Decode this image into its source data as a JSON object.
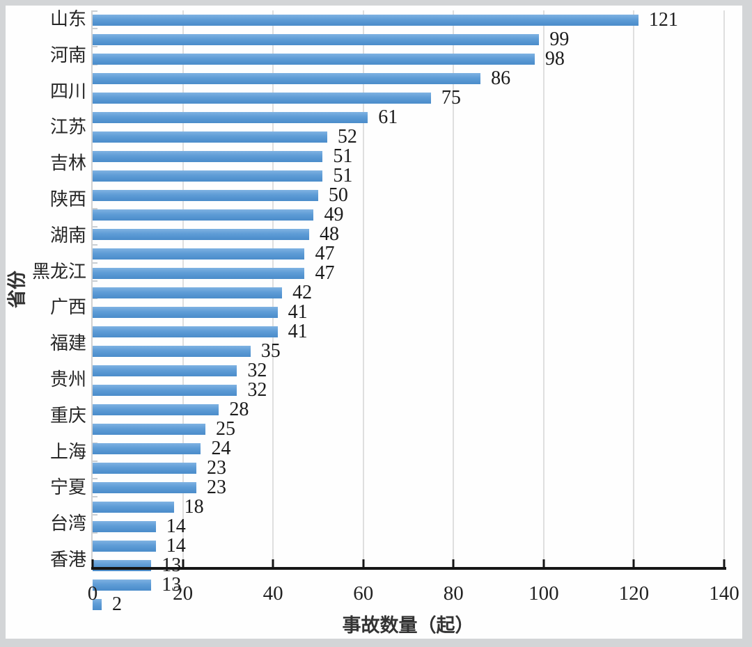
{
  "page": {
    "background_color": "#d3d5d7",
    "panel_color": "#fefefe"
  },
  "chart_data": {
    "type": "bar",
    "orientation": "horizontal",
    "title": "",
    "xlabel": "事故数量（起）",
    "ylabel": "省份",
    "xlim": [
      0,
      140
    ],
    "xticks": [
      0,
      20,
      40,
      60,
      80,
      100,
      120,
      140
    ],
    "grid": "vertical-light",
    "legend": "none",
    "bar_color": "#5b9bd5",
    "bars": [
      {
        "label": "山东",
        "value": 121
      },
      {
        "label": "",
        "value": 99
      },
      {
        "label": "河南",
        "value": 98
      },
      {
        "label": "",
        "value": 86
      },
      {
        "label": "四川",
        "value": 75
      },
      {
        "label": "",
        "value": 61
      },
      {
        "label": "江苏",
        "value": 52
      },
      {
        "label": "",
        "value": 51
      },
      {
        "label": "吉林",
        "value": 51
      },
      {
        "label": "",
        "value": 50
      },
      {
        "label": "陕西",
        "value": 49
      },
      {
        "label": "",
        "value": 48
      },
      {
        "label": "湖南",
        "value": 47
      },
      {
        "label": "",
        "value": 47
      },
      {
        "label": "黑龙江",
        "value": 42
      },
      {
        "label": "",
        "value": 41
      },
      {
        "label": "广西",
        "value": 41
      },
      {
        "label": "",
        "value": 35
      },
      {
        "label": "福建",
        "value": 32
      },
      {
        "label": "",
        "value": 32
      },
      {
        "label": "贵州",
        "value": 28
      },
      {
        "label": "",
        "value": 25
      },
      {
        "label": "重庆",
        "value": 24
      },
      {
        "label": "",
        "value": 23
      },
      {
        "label": "上海",
        "value": 23
      },
      {
        "label": "",
        "value": 18
      },
      {
        "label": "宁夏",
        "value": 14
      },
      {
        "label": "",
        "value": 14
      },
      {
        "label": "台湾",
        "value": 13
      },
      {
        "label": "",
        "value": 13
      },
      {
        "label": "香港",
        "value": 2
      }
    ]
  }
}
